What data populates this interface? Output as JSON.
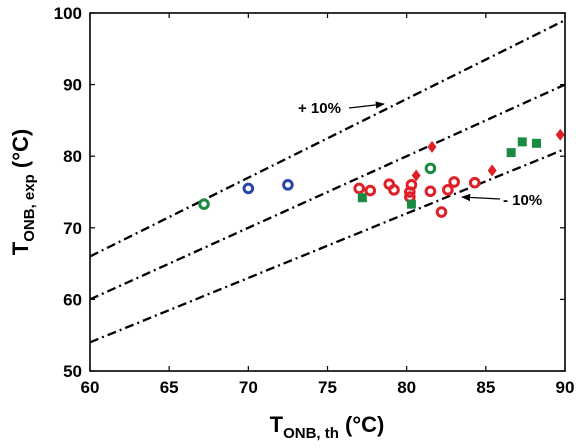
{
  "chart_data": {
    "type": "scatter",
    "xlim": [
      60,
      90
    ],
    "ylim": [
      50,
      100
    ],
    "xticks": [
      "60",
      "65",
      "70",
      "75",
      "80",
      "85",
      "90"
    ],
    "yticks": [
      "50",
      "60",
      "70",
      "80",
      "90",
      "100"
    ],
    "grid": false,
    "xlabel": {
      "main": "T",
      "sub": "ONB, th",
      "unit": " (°C)"
    },
    "ylabel": {
      "main": "T",
      "sub": "ONB, exp",
      "unit": " (°C)"
    },
    "reference_lines": [
      {
        "slope": 1.1,
        "style": "dash-dot",
        "label": "+ 10%"
      },
      {
        "slope": 1.0,
        "style": "dash-dot"
      },
      {
        "slope": 0.9,
        "style": "dash-dot",
        "label": "- 10%"
      }
    ],
    "annotations": {
      "plus": "+ 10%",
      "minus": "- 10%"
    },
    "series": [
      {
        "marker": "circle",
        "color": "#1a8a43",
        "points": [
          [
            67.2,
            73.3
          ],
          [
            81.5,
            78.3
          ]
        ]
      },
      {
        "marker": "circle",
        "color": "#2b46a8",
        "points": [
          [
            70.0,
            75.5
          ],
          [
            72.5,
            76.0
          ]
        ]
      },
      {
        "marker": "circle",
        "color": "#e02027",
        "points": [
          [
            77.0,
            75.5
          ],
          [
            77.7,
            75.2
          ],
          [
            78.9,
            76.1
          ],
          [
            79.2,
            75.3
          ],
          [
            80.2,
            75.0
          ],
          [
            80.2,
            74.3
          ],
          [
            80.3,
            76.0
          ],
          [
            81.5,
            75.1
          ],
          [
            82.2,
            72.2
          ],
          [
            82.6,
            75.3
          ],
          [
            83.0,
            76.4
          ],
          [
            84.3,
            76.3
          ]
        ]
      },
      {
        "marker": "diamond",
        "color": "#e02027",
        "points": [
          [
            80.6,
            77.3
          ],
          [
            81.6,
            81.3
          ],
          [
            85.4,
            78.0
          ],
          [
            89.7,
            83.0
          ]
        ]
      },
      {
        "marker": "square",
        "color": "#1a8a43",
        "points": [
          [
            77.2,
            74.2
          ],
          [
            80.3,
            73.3
          ],
          [
            86.6,
            80.5
          ],
          [
            87.3,
            82.0
          ],
          [
            88.2,
            81.8
          ]
        ]
      }
    ]
  }
}
